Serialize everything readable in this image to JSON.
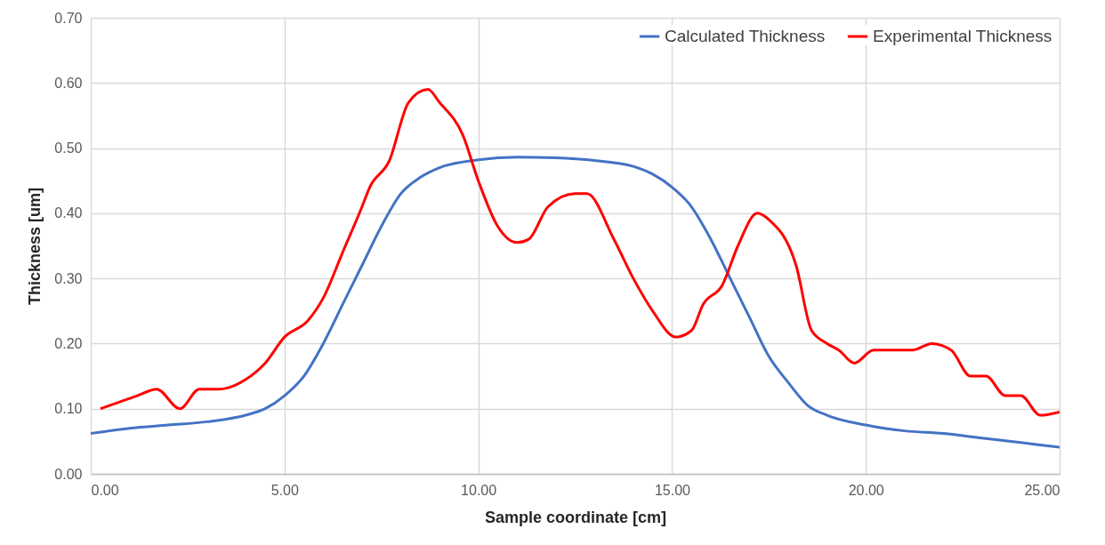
{
  "chart_data": {
    "type": "line",
    "xlabel": "Sample coordinate [cm]",
    "ylabel": "Thickness [um]",
    "xlim": [
      0,
      25
    ],
    "ylim": [
      0,
      0.7
    ],
    "xticks": [
      {
        "value": 0,
        "label": "0.00"
      },
      {
        "value": 5,
        "label": "5.00"
      },
      {
        "value": 10,
        "label": "10.00"
      },
      {
        "value": 15,
        "label": "15.00"
      },
      {
        "value": 20,
        "label": "20.00"
      },
      {
        "value": 25,
        "label": "25.00"
      }
    ],
    "yticks": [
      {
        "value": 0,
        "label": "0.00"
      },
      {
        "value": 0.1,
        "label": "0.10"
      },
      {
        "value": 0.2,
        "label": "0.20"
      },
      {
        "value": 0.3,
        "label": "0.30"
      },
      {
        "value": 0.4,
        "label": "0.40"
      },
      {
        "value": 0.5,
        "label": "0.50"
      },
      {
        "value": 0.6,
        "label": "0.60"
      },
      {
        "value": 0.7,
        "label": "0.70"
      }
    ],
    "grid": true,
    "legend": "top right",
    "line_style": "solid",
    "series": [
      {
        "name": "Calculated Thickness",
        "color": "#4472c4",
        "x": [
          0,
          1,
          2,
          3,
          4,
          4.5,
          5,
          5.5,
          6,
          6.5,
          7,
          7.5,
          8,
          8.5,
          9,
          10,
          11,
          12,
          13,
          14,
          14.5,
          15,
          15.5,
          16,
          16.5,
          17,
          17.5,
          18,
          18.5,
          19,
          20,
          21,
          22,
          23,
          24,
          25
        ],
        "values": [
          0.062,
          0.07,
          0.075,
          0.08,
          0.09,
          0.1,
          0.12,
          0.15,
          0.2,
          0.26,
          0.32,
          0.38,
          0.43,
          0.455,
          0.47,
          0.482,
          0.486,
          0.485,
          0.481,
          0.472,
          0.46,
          0.44,
          0.41,
          0.36,
          0.3,
          0.24,
          0.18,
          0.14,
          0.105,
          0.09,
          0.075,
          0.066,
          0.062,
          0.055,
          0.048,
          0.041
        ]
      },
      {
        "name": "Experimental Thickness",
        "color": "#ff0000",
        "x": [
          0.25,
          1.2,
          1.7,
          2.3,
          2.8,
          3.3,
          4,
          4.5,
          5,
          5.6,
          6,
          6.5,
          7,
          7.2,
          7.7,
          8.2,
          8.7,
          9,
          9.6,
          10,
          10.5,
          11,
          11.3,
          11.8,
          12.5,
          12.8,
          13.5,
          14,
          14.5,
          15.1,
          15.5,
          15.8,
          16.3,
          16.7,
          17.2,
          17.5,
          18.2,
          18.6,
          19,
          19.3,
          19.7,
          20.2,
          21.2,
          21.7,
          22.2,
          22.7,
          23.1,
          23.6,
          24,
          24.5,
          25
        ],
        "values": [
          0.1,
          0.12,
          0.13,
          0.1,
          0.13,
          0.13,
          0.145,
          0.17,
          0.21,
          0.235,
          0.27,
          0.34,
          0.41,
          0.44,
          0.48,
          0.57,
          0.59,
          0.57,
          0.52,
          0.45,
          0.38,
          0.355,
          0.36,
          0.41,
          0.43,
          0.43,
          0.36,
          0.3,
          0.25,
          0.21,
          0.22,
          0.26,
          0.29,
          0.35,
          0.4,
          0.39,
          0.32,
          0.22,
          0.2,
          0.19,
          0.17,
          0.19,
          0.19,
          0.2,
          0.19,
          0.15,
          0.15,
          0.12,
          0.12,
          0.09,
          0.095
        ]
      }
    ]
  }
}
